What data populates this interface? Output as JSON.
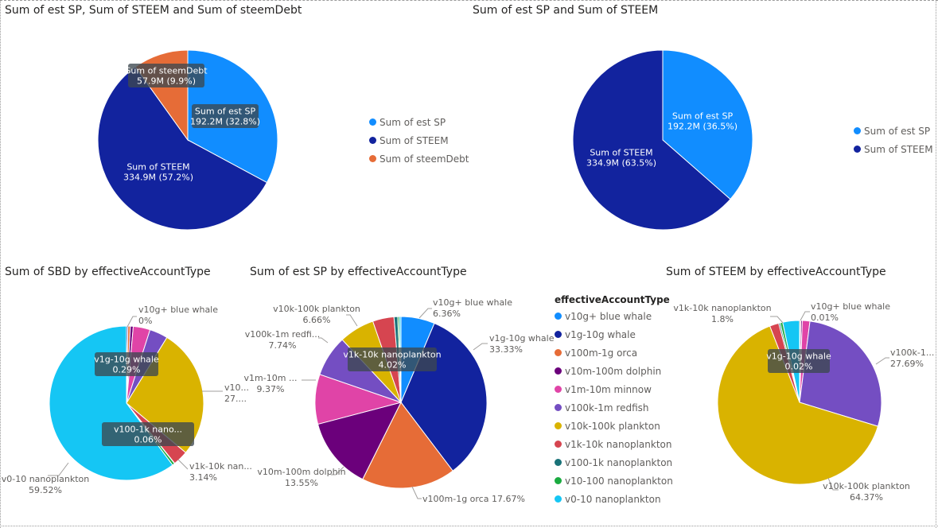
{
  "colors": {
    "sp": "#118dff",
    "steem": "#12239e",
    "debt": "#e66c37",
    "blue_whale": "#118dff",
    "g_whale": "#12239e",
    "orca": "#e66c37",
    "dolphin": "#6b007b",
    "minnow": "#e044a7",
    "redfish": "#744ec2",
    "plankton": "#d9b300",
    "nanoplankton_1k10k": "#d64550",
    "nanoplankton_100_1k": "#197278",
    "nanoplankton_10_100": "#1aab40",
    "nanoplankton_0_10": "#15c6f4"
  },
  "titles": {
    "chart1": "Sum of est SP, Sum of STEEM and Sum of steemDebt",
    "chart2": "Sum of est SP and Sum of STEEM",
    "chart3": "Sum of SBD by effectiveAccountType",
    "chart4": "Sum of est SP by effectiveAccountType",
    "chart5": "Sum of STEEM by effectiveAccountType"
  },
  "legend1": [
    {
      "label": "Sum of est SP",
      "color": "#118dff"
    },
    {
      "label": "Sum of STEEM",
      "color": "#12239e"
    },
    {
      "label": "Sum of steemDebt",
      "color": "#e66c37"
    }
  ],
  "legend2": [
    {
      "label": "Sum of est SP",
      "color": "#118dff"
    },
    {
      "label": "Sum of STEEM",
      "color": "#12239e"
    }
  ],
  "legend3": {
    "title": "effectiveAccountType",
    "items": [
      {
        "label": "v10g+ blue whale",
        "color": "#118dff"
      },
      {
        "label": "v1g-10g whale",
        "color": "#12239e"
      },
      {
        "label": "v100m-1g orca",
        "color": "#e66c37"
      },
      {
        "label": "v10m-100m dolphin",
        "color": "#6b007b"
      },
      {
        "label": "v1m-10m minnow",
        "color": "#e044a7"
      },
      {
        "label": "v100k-1m redfish",
        "color": "#744ec2"
      },
      {
        "label": "v10k-100k plankton",
        "color": "#d9b300"
      },
      {
        "label": "v1k-10k nanoplankton",
        "color": "#d64550"
      },
      {
        "label": "v100-1k nanoplankton",
        "color": "#197278"
      },
      {
        "label": "v10-100 nanoplankton",
        "color": "#1aab40"
      },
      {
        "label": "v0-10 nanoplankton",
        "color": "#15c6f4"
      }
    ]
  },
  "chart_data": [
    {
      "type": "pie",
      "title": "Sum of est SP, Sum of STEEM and Sum of steemDebt",
      "legend_position": "right",
      "slices": [
        {
          "label": "Sum of est SP",
          "value": 192.2,
          "percent": 32.8,
          "color": "#118dff",
          "text": "192.2M (32.8%)"
        },
        {
          "label": "Sum of STEEM",
          "value": 334.9,
          "percent": 57.2,
          "color": "#12239e",
          "text": "334.9M (57.2%)"
        },
        {
          "label": "Sum of steemDebt",
          "value": 57.9,
          "percent": 9.9,
          "color": "#e66c37",
          "text": "57.9M (9.9%)"
        }
      ]
    },
    {
      "type": "pie",
      "title": "Sum of est SP and Sum of STEEM",
      "legend_position": "right",
      "slices": [
        {
          "label": "Sum of est SP",
          "value": 192.2,
          "percent": 36.5,
          "color": "#118dff",
          "text": "192.2M (36.5%)"
        },
        {
          "label": "Sum of STEEM",
          "value": 334.9,
          "percent": 63.5,
          "color": "#12239e",
          "text": "334.9M (63.5%)"
        }
      ]
    },
    {
      "type": "pie",
      "title": "Sum of SBD by effectiveAccountType",
      "slices": [
        {
          "label": "v10g+ blue whale",
          "percent": 0.0,
          "color": "#118dff"
        },
        {
          "label": "v1g-10g whale",
          "percent": 0.29,
          "color": "#12239e"
        },
        {
          "label": "v100m-1g orca",
          "percent": 0.5,
          "color": "#e66c37"
        },
        {
          "label": "v10m-100m dolphin",
          "percent": 0.6,
          "color": "#6b007b"
        },
        {
          "label": "v1m-10m minnow",
          "percent": 3.5,
          "color": "#e044a7"
        },
        {
          "label": "v100k-1m redfish",
          "percent": 3.8,
          "color": "#744ec2"
        },
        {
          "label": "v10k-100k plankton",
          "percent": 27.0,
          "color": "#d9b300"
        },
        {
          "label": "v1k-10k nanoplankton",
          "percent": 3.14,
          "color": "#d64550"
        },
        {
          "label": "v100-1k nanoplankton",
          "percent": 0.06,
          "color": "#197278"
        },
        {
          "label": "v10-100 nanoplankton",
          "percent": 0.5,
          "color": "#1aab40"
        },
        {
          "label": "v0-10 nanoplankton",
          "percent": 59.52,
          "color": "#15c6f4"
        }
      ],
      "data_labels": [
        {
          "name": "v10g+ blue whale",
          "value": "0%"
        },
        {
          "name": "v10...",
          "value": "27...."
        },
        {
          "name": "v1k-10k nan...",
          "value": "3.14%"
        },
        {
          "name": "v0-10 nanoplankton",
          "value": "59.52%"
        }
      ],
      "tooltips": [
        {
          "label": "v1g-10g whale",
          "value": "0.29%"
        },
        {
          "label": "v100-1k nano...",
          "value": "0.06%"
        }
      ]
    },
    {
      "type": "pie",
      "title": "Sum of est SP by effectiveAccountType",
      "slices": [
        {
          "label": "v10g+ blue whale",
          "percent": 6.36,
          "color": "#118dff"
        },
        {
          "label": "v1g-10g whale",
          "percent": 33.33,
          "color": "#12239e"
        },
        {
          "label": "v100m-1g orca",
          "percent": 17.67,
          "color": "#e66c37"
        },
        {
          "label": "v10m-100m dolphin",
          "percent": 13.55,
          "color": "#6b007b"
        },
        {
          "label": "v1m-10m minnow",
          "percent": 9.37,
          "color": "#e044a7"
        },
        {
          "label": "v100k-1m redfish",
          "percent": 7.74,
          "color": "#744ec2"
        },
        {
          "label": "v10k-100k plankton",
          "percent": 6.66,
          "color": "#d9b300"
        },
        {
          "label": "v1k-10k nanoplankton",
          "percent": 4.02,
          "color": "#d64550"
        },
        {
          "label": "v100-1k nanoplankton",
          "percent": 0.7,
          "color": "#197278"
        },
        {
          "label": "v10-100 nanoplankton",
          "percent": 0.3,
          "color": "#1aab40"
        },
        {
          "label": "v0-10 nanoplankton",
          "percent": 0.3,
          "color": "#15c6f4"
        }
      ],
      "data_labels": [
        {
          "name": "v10g+ blue whale",
          "value": "6.36%"
        },
        {
          "name": "v1g-10g whale",
          "value": "33.33%"
        },
        {
          "name": "v100m-1g orca 17.67%",
          "value": ""
        },
        {
          "name": "v10m-100m dolphin",
          "value": "13.55%"
        },
        {
          "name": "v1m-10m ...",
          "value": "9.37%"
        },
        {
          "name": "v100k-1m redfi...",
          "value": "7.74%"
        },
        {
          "name": "v10k-100k plankton",
          "value": "6.66%"
        }
      ],
      "tooltips": [
        {
          "label": "v1k-10k nanoplankton",
          "value": "4.02%"
        }
      ]
    },
    {
      "type": "pie",
      "title": "Sum of STEEM by effectiveAccountType",
      "slices": [
        {
          "label": "v10g+ blue whale",
          "percent": 0.01,
          "color": "#118dff"
        },
        {
          "label": "v1g-10g whale",
          "percent": 0.02,
          "color": "#12239e"
        },
        {
          "label": "v100m-1g orca",
          "percent": 0.2,
          "color": "#e66c37"
        },
        {
          "label": "v10m-100m dolphin",
          "percent": 0.3,
          "color": "#6b007b"
        },
        {
          "label": "v1m-10m minnow",
          "percent": 1.5,
          "color": "#e044a7"
        },
        {
          "label": "v100k-1m redfish",
          "percent": 27.69,
          "color": "#744ec2"
        },
        {
          "label": "v10k-100k plankton",
          "percent": 64.37,
          "color": "#d9b300"
        },
        {
          "label": "v1k-10k nanoplankton",
          "percent": 1.8,
          "color": "#d64550"
        },
        {
          "label": "v100-1k nanoplankton",
          "percent": 0.3,
          "color": "#197278"
        },
        {
          "label": "v10-100 nanoplankton",
          "percent": 0.5,
          "color": "#1aab40"
        },
        {
          "label": "v0-10 nanoplankton",
          "percent": 3.31,
          "color": "#15c6f4"
        }
      ],
      "data_labels": [
        {
          "name": "v10g+ blue whale",
          "value": "0.01%"
        },
        {
          "name": "v100k-1...",
          "value": "27.69%"
        },
        {
          "name": "v10k-100k plankton",
          "value": "64.37%"
        },
        {
          "name": "v1k-10k nanoplankton",
          "value": "1.8%"
        }
      ],
      "tooltips": [
        {
          "label": "v1g-10g whale",
          "value": "0.02%"
        }
      ]
    }
  ]
}
